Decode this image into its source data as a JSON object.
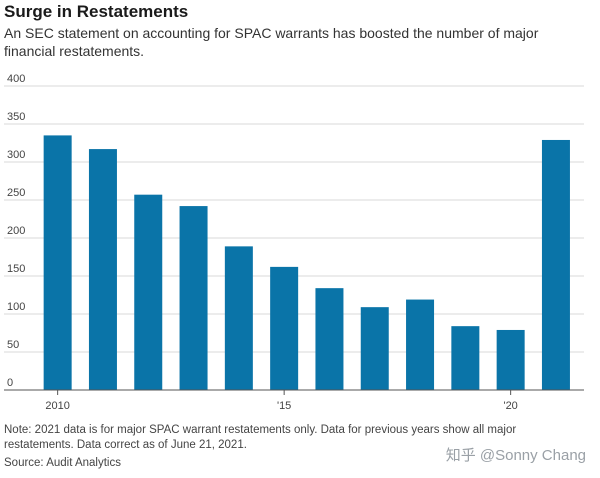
{
  "chart_data": {
    "type": "bar",
    "title": "Surge in Restatements",
    "subtitle": "An SEC statement on accounting for SPAC warrants has boosted the number of major financial restatements.",
    "categories": [
      "2010",
      "2011",
      "2012",
      "2013",
      "2014",
      "2015",
      "2016",
      "2017",
      "2018",
      "2019",
      "2020",
      "2021"
    ],
    "values": [
      335,
      317,
      257,
      242,
      189,
      162,
      134,
      109,
      119,
      84,
      79,
      329
    ],
    "ylim": [
      0,
      400
    ],
    "yticks": [
      0,
      50,
      100,
      150,
      200,
      250,
      300,
      350,
      400
    ],
    "xtick_labels": [
      {
        "index": 0,
        "label": "2010"
      },
      {
        "index": 5,
        "label": "'15"
      },
      {
        "index": 10,
        "label": "'20"
      }
    ],
    "xlabel": "",
    "ylabel": "",
    "bar_color": "#0a74a8",
    "grid": true
  },
  "footer": {
    "note": "Note: 2021 data is for major SPAC warrant restatements only. Data for previous years show all major restatements. Data correct as of June 21, 2021.",
    "source": "Source: Audit Analytics"
  },
  "watermark": "知乎 @Sonny Chang"
}
